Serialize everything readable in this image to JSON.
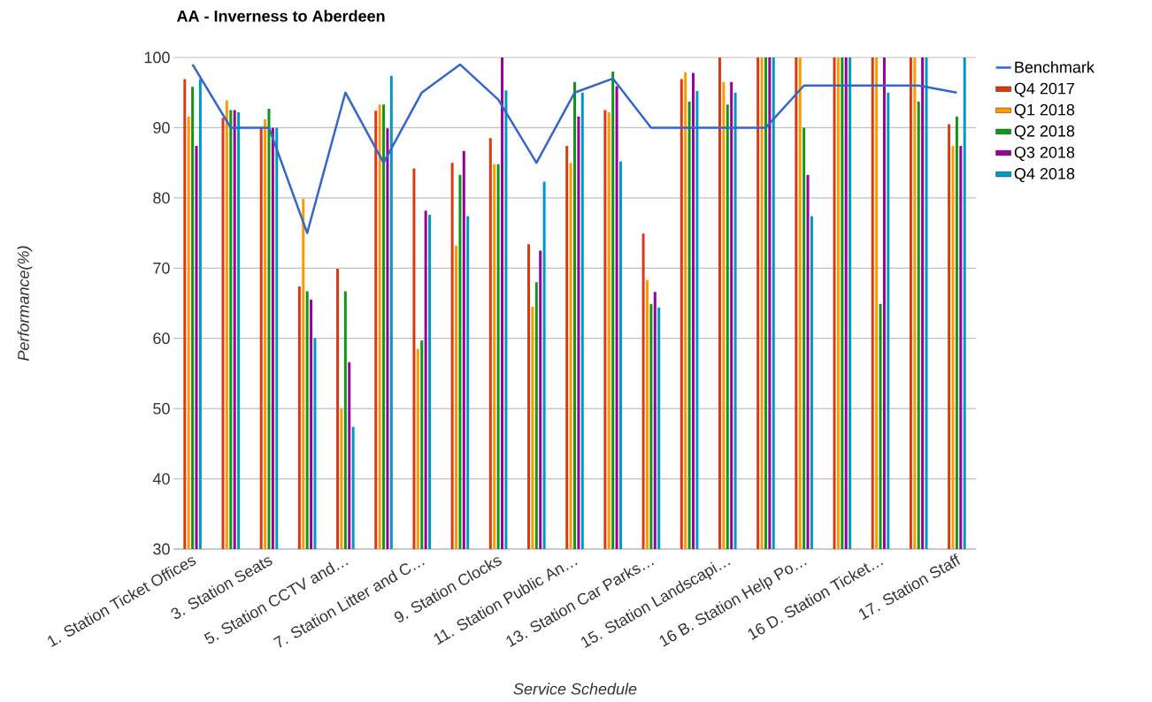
{
  "chart_data": {
    "type": "bar",
    "title": "AA - Inverness to Aberdeen",
    "xlabel": "Service Schedule",
    "ylabel": "Performance(%)",
    "categories": [
      "1. Station Ticket Offices",
      null,
      "3. Station Seats",
      null,
      "5. Station CCTV and…",
      null,
      "7. Station Litter and C…",
      null,
      "9. Station Clocks",
      null,
      "11. Station Public An…",
      null,
      "13. Station Car Parks…",
      null,
      "15. Station Landscapi…",
      null,
      "16 B. Station Help Po…",
      null,
      "16 D. Station Ticket…",
      null,
      "17. Station Staff"
    ],
    "series": [
      {
        "name": "Benchmark",
        "type": "line",
        "color": "#3366cc",
        "values": [
          99,
          90,
          90,
          75,
          95,
          85,
          95,
          99,
          94,
          85,
          95,
          97,
          90,
          90,
          90,
          90,
          96,
          96,
          96,
          96,
          95
        ]
      },
      {
        "name": "Q4 2017",
        "color": "#dc3912",
        "values": [
          96.9,
          91.4,
          90.0,
          67.4,
          69.9,
          92.4,
          84.2,
          85.0,
          88.5,
          73.4,
          87.4,
          92.5,
          74.9,
          96.9,
          100,
          100,
          100,
          100,
          100,
          100,
          90.5
        ]
      },
      {
        "name": "Q1 2018",
        "color": "#ff9900",
        "values": [
          91.6,
          93.9,
          91.2,
          79.9,
          50.0,
          93.3,
          58.5,
          73.2,
          84.8,
          64.5,
          85.0,
          92.2,
          68.3,
          97.9,
          96.5,
          100,
          100,
          100,
          100,
          100,
          87.4
        ]
      },
      {
        "name": "Q2 2018",
        "color": "#109618",
        "values": [
          95.8,
          92.5,
          92.7,
          66.7,
          66.7,
          93.3,
          59.7,
          83.3,
          84.8,
          68.0,
          96.5,
          98.0,
          64.9,
          93.7,
          93.3,
          100,
          90,
          100,
          64.9,
          93.7,
          91.6
        ]
      },
      {
        "name": "Q3 2018",
        "color": "#990099",
        "values": [
          87.4,
          92.5,
          90.0,
          65.5,
          56.6,
          89.9,
          78.2,
          86.7,
          100,
          72.5,
          91.6,
          95.9,
          66.6,
          97.8,
          96.5,
          100,
          83.3,
          100,
          100,
          100,
          87.4
        ]
      },
      {
        "name": "Q4 2018",
        "color": "#0099c6",
        "values": [
          96.9,
          92.2,
          90.0,
          60.0,
          47.4,
          97.4,
          77.6,
          77.4,
          95.3,
          82.3,
          95.0,
          85.2,
          64.4,
          95.2,
          95.0,
          100,
          77.4,
          100,
          95.0,
          100,
          100
        ]
      }
    ],
    "ylim": [
      30,
      100
    ],
    "yticks": [
      30,
      40,
      50,
      60,
      70,
      80,
      90,
      100
    ],
    "grid": "y",
    "legend": "right"
  }
}
